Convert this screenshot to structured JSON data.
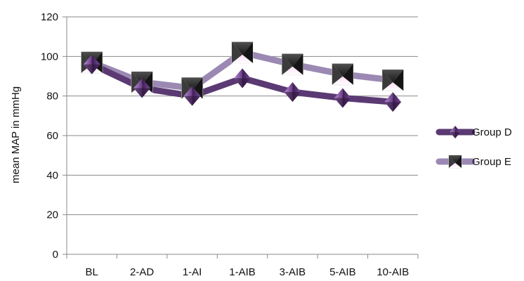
{
  "chart_data": {
    "type": "line",
    "title": "",
    "xlabel": "",
    "ylabel": "mean  MAP in mmHg",
    "categories": [
      "BL",
      "2-AD",
      "1-AI",
      "1-AIB",
      "3-AIB",
      "5-AIB",
      "10-AIB"
    ],
    "ylim": [
      0,
      120
    ],
    "yticks": [
      0,
      20,
      40,
      60,
      80,
      100,
      120
    ],
    "grid": true,
    "legend_position": "right",
    "series": [
      {
        "name": "Group D",
        "values": [
          96,
          84,
          80,
          89,
          82,
          79,
          77
        ],
        "color": "#5b3a73",
        "marker": "diamond-star"
      },
      {
        "name": "Group E",
        "values": [
          97,
          87,
          84,
          102,
          96,
          91,
          88
        ],
        "color": "#9b89b4",
        "marker": "black-triangle-square"
      }
    ]
  }
}
